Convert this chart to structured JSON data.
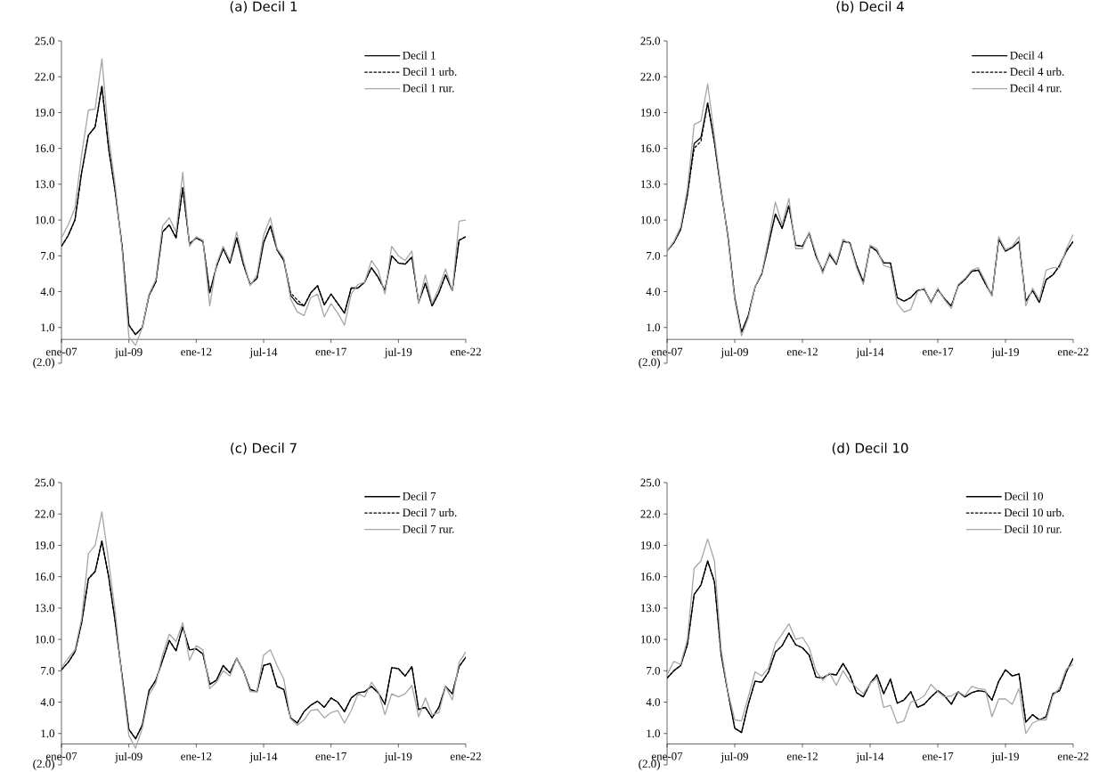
{
  "chart_data": [
    {
      "type": "line",
      "title": "(a) Decil 1",
      "legend": "top right",
      "x": [
        "2007-01",
        "2007-04",
        "2007-07",
        "2007-10",
        "2008-01",
        "2008-04",
        "2008-07",
        "2008-10",
        "2009-01",
        "2009-04",
        "2009-07",
        "2009-10",
        "2010-01",
        "2010-04",
        "2010-07",
        "2010-10",
        "2011-01",
        "2011-04",
        "2011-07",
        "2011-10",
        "2012-01",
        "2012-04",
        "2012-07",
        "2012-10",
        "2013-01",
        "2013-04",
        "2013-07",
        "2013-10",
        "2014-01",
        "2014-04",
        "2014-07",
        "2014-10",
        "2015-01",
        "2015-04",
        "2015-07",
        "2015-10",
        "2016-01",
        "2016-04",
        "2016-07",
        "2016-10",
        "2017-01",
        "2017-04",
        "2017-07",
        "2017-10",
        "2018-01",
        "2018-04",
        "2018-07",
        "2018-10",
        "2019-01",
        "2019-04",
        "2019-07",
        "2019-10",
        "2020-01",
        "2020-04",
        "2020-07",
        "2020-10",
        "2021-01",
        "2021-04",
        "2021-07",
        "2021-10",
        "2022-01"
      ],
      "xlim": [
        "2007-01",
        "2022-01"
      ],
      "xticks": [
        {
          "value": "2007-01",
          "label": "ene-07"
        },
        {
          "value": "2009-07",
          "label": "jul-09"
        },
        {
          "value": "2012-01",
          "label": "ene-12"
        },
        {
          "value": "2014-07",
          "label": "jul-14"
        },
        {
          "value": "2017-01",
          "label": "ene-17"
        },
        {
          "value": "2019-07",
          "label": "jul-19"
        },
        {
          "value": "2022-01",
          "label": "ene-22"
        }
      ],
      "ylim": [
        -2,
        25
      ],
      "yticks": [
        {
          "value": -2,
          "label": "(2.0)"
        },
        {
          "value": 1,
          "label": "1.0"
        },
        {
          "value": 4,
          "label": "4.0"
        },
        {
          "value": 7,
          "label": "7.0"
        },
        {
          "value": 10,
          "label": "10.0"
        },
        {
          "value": 13,
          "label": "13.0"
        },
        {
          "value": 16,
          "label": "16.0"
        },
        {
          "value": 19,
          "label": "19.0"
        },
        {
          "value": 22,
          "label": "22.0"
        },
        {
          "value": 25,
          "label": "25.0"
        }
      ],
      "series": [
        {
          "name": "Decil 1",
          "color": "#000000",
          "line_style": "solid",
          "values": [
            7.8,
            8.7,
            10.0,
            14.0,
            17.1,
            17.8,
            21.2,
            16.0,
            12.3,
            7.8,
            1.2,
            0.4,
            1.0,
            3.7,
            4.8,
            9.0,
            9.6,
            8.5,
            12.7,
            8.0,
            8.5,
            8.2,
            3.9,
            6.1,
            7.6,
            6.4,
            8.5,
            6.3,
            4.6,
            5.1,
            8.1,
            9.5,
            7.5,
            6.6,
            3.7,
            3.0,
            2.8,
            3.9,
            4.5,
            2.9,
            3.8,
            3.0,
            2.2,
            4.3,
            4.3,
            4.8,
            6.0,
            5.2,
            4.1,
            7.0,
            6.4,
            6.3,
            6.9,
            3.1,
            4.7,
            2.8,
            3.9,
            5.4,
            4.1,
            8.3,
            8.6
          ]
        },
        {
          "name": "Decil 1 urb.",
          "color": "#000000",
          "line_style": "dashed",
          "values": [
            7.8,
            8.7,
            10.0,
            14.0,
            17.1,
            17.8,
            21.2,
            16.0,
            12.3,
            7.8,
            1.2,
            0.4,
            1.0,
            3.7,
            4.8,
            9.0,
            9.6,
            8.5,
            12.7,
            8.0,
            8.5,
            8.2,
            3.9,
            6.1,
            7.6,
            6.4,
            8.5,
            6.3,
            4.6,
            5.1,
            8.1,
            9.5,
            7.5,
            6.6,
            3.9,
            3.3,
            2.8,
            3.9,
            4.5,
            2.9,
            3.8,
            3.0,
            2.2,
            4.3,
            4.3,
            4.8,
            6.0,
            5.2,
            4.1,
            7.0,
            6.4,
            6.3,
            6.9,
            3.1,
            4.7,
            2.8,
            3.9,
            5.4,
            4.1,
            8.3,
            8.6
          ]
        },
        {
          "name": "Decil 1 rur.",
          "color": "#a6a6a6",
          "line_style": "solid",
          "values": [
            8.5,
            9.6,
            11.0,
            15.5,
            19.2,
            19.3,
            23.5,
            17.0,
            12.8,
            7.5,
            0.2,
            -0.5,
            1.0,
            3.8,
            5.0,
            9.5,
            10.2,
            9.0,
            14.0,
            7.8,
            8.6,
            8.3,
            2.8,
            6.3,
            7.8,
            6.6,
            9.0,
            6.6,
            4.5,
            5.4,
            8.7,
            10.2,
            7.6,
            6.8,
            3.4,
            2.3,
            2.0,
            3.5,
            3.8,
            1.9,
            3.0,
            2.2,
            1.2,
            3.8,
            4.6,
            4.8,
            6.6,
            5.8,
            3.8,
            7.8,
            7.0,
            6.6,
            7.4,
            3.0,
            5.4,
            3.0,
            4.3,
            5.9,
            4.1,
            9.9,
            10.0
          ]
        }
      ]
    },
    {
      "type": "line",
      "title": "(b) Decil 4",
      "legend": "top right",
      "x": [
        "2007-01",
        "2007-04",
        "2007-07",
        "2007-10",
        "2008-01",
        "2008-04",
        "2008-07",
        "2008-10",
        "2009-01",
        "2009-04",
        "2009-07",
        "2009-10",
        "2010-01",
        "2010-04",
        "2010-07",
        "2010-10",
        "2011-01",
        "2011-04",
        "2011-07",
        "2011-10",
        "2012-01",
        "2012-04",
        "2012-07",
        "2012-10",
        "2013-01",
        "2013-04",
        "2013-07",
        "2013-10",
        "2014-01",
        "2014-04",
        "2014-07",
        "2014-10",
        "2015-01",
        "2015-04",
        "2015-07",
        "2015-10",
        "2016-01",
        "2016-04",
        "2016-07",
        "2016-10",
        "2017-01",
        "2017-04",
        "2017-07",
        "2017-10",
        "2018-01",
        "2018-04",
        "2018-07",
        "2018-10",
        "2019-01",
        "2019-04",
        "2019-07",
        "2019-10",
        "2020-01",
        "2020-04",
        "2020-07",
        "2020-10",
        "2021-01",
        "2021-04",
        "2021-07",
        "2021-10",
        "2022-01"
      ],
      "xlim": [
        "2007-01",
        "2022-01"
      ],
      "xticks": [
        {
          "value": "2007-01",
          "label": "ene-07"
        },
        {
          "value": "2009-07",
          "label": "jul-09"
        },
        {
          "value": "2012-01",
          "label": "ene-12"
        },
        {
          "value": "2014-07",
          "label": "jul-14"
        },
        {
          "value": "2017-01",
          "label": "ene-17"
        },
        {
          "value": "2019-07",
          "label": "jul-19"
        },
        {
          "value": "2022-01",
          "label": "ene-22"
        }
      ],
      "ylim": [
        -2,
        25
      ],
      "yticks": [
        {
          "value": -2,
          "label": "(2.0)"
        },
        {
          "value": 1,
          "label": "1.0"
        },
        {
          "value": 4,
          "label": "4.0"
        },
        {
          "value": 7,
          "label": "7.0"
        },
        {
          "value": 10,
          "label": "10.0"
        },
        {
          "value": 13,
          "label": "13.0"
        },
        {
          "value": 16,
          "label": "16.0"
        },
        {
          "value": 19,
          "label": "19.0"
        },
        {
          "value": 22,
          "label": "22.0"
        },
        {
          "value": 25,
          "label": "25.0"
        }
      ],
      "series": [
        {
          "name": "Decil 4",
          "color": "#000000",
          "line_style": "solid",
          "values": [
            7.4,
            8.1,
            9.2,
            12.1,
            16.4,
            16.9,
            19.8,
            16.5,
            12.4,
            8.6,
            3.5,
            0.6,
            2.0,
            4.4,
            5.5,
            8.0,
            10.5,
            9.3,
            11.2,
            7.9,
            7.8,
            8.9,
            7.0,
            5.7,
            7.1,
            6.3,
            8.2,
            8.1,
            6.2,
            4.8,
            7.8,
            7.4,
            6.4,
            6.4,
            3.5,
            3.2,
            3.5,
            4.1,
            4.2,
            3.1,
            4.2,
            3.4,
            2.8,
            4.5,
            5.0,
            5.7,
            5.8,
            4.7,
            3.7,
            8.4,
            7.4,
            7.7,
            8.2,
            3.2,
            4.1,
            3.1,
            5.0,
            5.4,
            6.2,
            7.4,
            8.2
          ]
        },
        {
          "name": "Decil 4 urb.",
          "color": "#000000",
          "line_style": "dashed",
          "values": [
            7.4,
            8.1,
            9.2,
            12.1,
            16.0,
            16.6,
            19.8,
            16.5,
            12.4,
            8.6,
            3.5,
            0.6,
            2.0,
            4.4,
            5.5,
            8.0,
            10.5,
            9.3,
            11.2,
            7.9,
            7.8,
            8.9,
            7.0,
            5.7,
            7.1,
            6.3,
            8.2,
            8.1,
            6.2,
            4.8,
            7.8,
            7.4,
            6.4,
            6.4,
            3.5,
            3.2,
            3.5,
            4.1,
            4.2,
            3.1,
            4.2,
            3.4,
            2.8,
            4.5,
            5.0,
            5.7,
            5.8,
            4.7,
            3.7,
            8.4,
            7.4,
            7.7,
            8.2,
            3.2,
            4.1,
            3.1,
            5.0,
            5.4,
            6.2,
            7.4,
            8.2
          ]
        },
        {
          "name": "Decil 4 rur.",
          "color": "#a6a6a6",
          "line_style": "solid",
          "values": [
            7.4,
            8.2,
            9.4,
            12.6,
            18.0,
            18.3,
            21.4,
            17.0,
            12.6,
            8.4,
            3.3,
            0.3,
            1.8,
            4.4,
            5.6,
            8.4,
            11.5,
            9.6,
            11.8,
            7.6,
            7.6,
            9.0,
            7.2,
            5.5,
            7.3,
            6.4,
            8.4,
            8.0,
            6.0,
            4.6,
            7.9,
            7.6,
            6.2,
            6.0,
            3.0,
            2.3,
            2.5,
            4.0,
            4.3,
            3.0,
            4.3,
            3.3,
            2.6,
            4.6,
            5.1,
            5.8,
            6.0,
            4.9,
            3.6,
            8.6,
            7.5,
            7.8,
            8.6,
            2.8,
            4.3,
            3.3,
            5.8,
            6.0,
            6.0,
            7.6,
            8.8
          ]
        }
      ]
    },
    {
      "type": "line",
      "title": "(c) Decil 7",
      "legend": "top right",
      "x": [
        "2007-01",
        "2007-04",
        "2007-07",
        "2007-10",
        "2008-01",
        "2008-04",
        "2008-07",
        "2008-10",
        "2009-01",
        "2009-04",
        "2009-07",
        "2009-10",
        "2010-01",
        "2010-04",
        "2010-07",
        "2010-10",
        "2011-01",
        "2011-04",
        "2011-07",
        "2011-10",
        "2012-01",
        "2012-04",
        "2012-07",
        "2012-10",
        "2013-01",
        "2013-04",
        "2013-07",
        "2013-10",
        "2014-01",
        "2014-04",
        "2014-07",
        "2014-10",
        "2015-01",
        "2015-04",
        "2015-07",
        "2015-10",
        "2016-01",
        "2016-04",
        "2016-07",
        "2016-10",
        "2017-01",
        "2017-04",
        "2017-07",
        "2017-10",
        "2018-01",
        "2018-04",
        "2018-07",
        "2018-10",
        "2019-01",
        "2019-04",
        "2019-07",
        "2019-10",
        "2020-01",
        "2020-04",
        "2020-07",
        "2020-10",
        "2021-01",
        "2021-04",
        "2021-07",
        "2021-10",
        "2022-01"
      ],
      "xlim": [
        "2007-01",
        "2022-01"
      ],
      "xticks": [
        {
          "value": "2007-01",
          "label": "ene-07"
        },
        {
          "value": "2009-07",
          "label": "jul-09"
        },
        {
          "value": "2012-01",
          "label": "ene-12"
        },
        {
          "value": "2014-07",
          "label": "jul-14"
        },
        {
          "value": "2017-01",
          "label": "ene-17"
        },
        {
          "value": "2019-07",
          "label": "jul-19"
        },
        {
          "value": "2022-01",
          "label": "ene-22"
        }
      ],
      "ylim": [
        -2,
        25
      ],
      "yticks": [
        {
          "value": -2,
          "label": "(2.0)"
        },
        {
          "value": 1,
          "label": "1.0"
        },
        {
          "value": 4,
          "label": "4.0"
        },
        {
          "value": 7,
          "label": "7.0"
        },
        {
          "value": 10,
          "label": "10.0"
        },
        {
          "value": 13,
          "label": "13.0"
        },
        {
          "value": 16,
          "label": "16.0"
        },
        {
          "value": 19,
          "label": "19.0"
        },
        {
          "value": 22,
          "label": "22.0"
        },
        {
          "value": 25,
          "label": "25.0"
        }
      ],
      "series": [
        {
          "name": "Decil 7",
          "color": "#000000",
          "line_style": "solid",
          "values": [
            7.1,
            7.8,
            8.8,
            11.6,
            15.8,
            16.5,
            19.4,
            16.0,
            11.6,
            6.5,
            1.4,
            0.5,
            1.8,
            5.1,
            6.1,
            8.0,
            9.9,
            8.9,
            11.2,
            9.0,
            9.1,
            8.6,
            5.7,
            6.1,
            7.5,
            6.8,
            8.2,
            7.0,
            5.2,
            5.0,
            7.5,
            7.7,
            5.5,
            5.2,
            2.5,
            2.0,
            3.1,
            3.7,
            4.1,
            3.5,
            4.4,
            4.0,
            3.1,
            4.4,
            4.9,
            5.0,
            5.5,
            4.9,
            3.8,
            7.3,
            7.2,
            6.5,
            7.4,
            3.3,
            3.5,
            2.5,
            3.5,
            5.5,
            4.8,
            7.4,
            8.3
          ]
        },
        {
          "name": "Decil 7 urb.",
          "color": "#000000",
          "line_style": "dashed",
          "values": [
            7.1,
            7.8,
            8.8,
            11.6,
            15.8,
            16.5,
            19.4,
            16.0,
            11.6,
            6.5,
            1.4,
            0.5,
            1.8,
            5.1,
            6.1,
            8.0,
            9.9,
            8.9,
            11.2,
            9.0,
            9.1,
            8.6,
            5.7,
            6.1,
            7.5,
            6.8,
            8.2,
            7.0,
            5.2,
            5.0,
            7.5,
            7.7,
            5.5,
            5.2,
            2.5,
            2.0,
            3.1,
            3.7,
            4.1,
            3.5,
            4.4,
            4.0,
            3.1,
            4.4,
            4.9,
            5.0,
            5.5,
            4.9,
            3.8,
            7.3,
            7.2,
            6.5,
            7.4,
            3.3,
            3.5,
            2.5,
            3.5,
            5.5,
            4.8,
            7.4,
            8.3
          ]
        },
        {
          "name": "Decil 7 rur.",
          "color": "#a6a6a6",
          "line_style": "solid",
          "values": [
            7.3,
            8.2,
            9.0,
            12.0,
            18.2,
            19.0,
            22.2,
            17.5,
            12.5,
            6.2,
            0.8,
            -0.4,
            1.5,
            4.7,
            5.8,
            8.5,
            10.5,
            9.8,
            11.6,
            8.0,
            9.4,
            9.0,
            5.3,
            5.9,
            7.0,
            6.5,
            8.2,
            7.0,
            5.0,
            5.0,
            8.5,
            9.0,
            7.5,
            6.2,
            2.4,
            1.8,
            2.3,
            3.2,
            3.3,
            2.5,
            3.0,
            3.2,
            2.0,
            3.2,
            4.8,
            4.5,
            5.9,
            5.0,
            2.8,
            4.8,
            4.5,
            4.8,
            5.6,
            2.6,
            4.4,
            2.8,
            3.0,
            5.5,
            4.2,
            7.8,
            8.8
          ]
        }
      ]
    },
    {
      "type": "line",
      "title": "(d) Decil 10",
      "legend": "top right",
      "x": [
        "2007-01",
        "2007-04",
        "2007-07",
        "2007-10",
        "2008-01",
        "2008-04",
        "2008-07",
        "2008-10",
        "2009-01",
        "2009-04",
        "2009-07",
        "2009-10",
        "2010-01",
        "2010-04",
        "2010-07",
        "2010-10",
        "2011-01",
        "2011-04",
        "2011-07",
        "2011-10",
        "2012-01",
        "2012-04",
        "2012-07",
        "2012-10",
        "2013-01",
        "2013-04",
        "2013-07",
        "2013-10",
        "2014-01",
        "2014-04",
        "2014-07",
        "2014-10",
        "2015-01",
        "2015-04",
        "2015-07",
        "2015-10",
        "2016-01",
        "2016-04",
        "2016-07",
        "2016-10",
        "2017-01",
        "2017-04",
        "2017-07",
        "2017-10",
        "2018-01",
        "2018-04",
        "2018-07",
        "2018-10",
        "2019-01",
        "2019-04",
        "2019-07",
        "2019-10",
        "2020-01",
        "2020-04",
        "2020-07",
        "2020-10",
        "2021-01",
        "2021-04",
        "2021-07",
        "2021-10",
        "2022-01"
      ],
      "xlim": [
        "2007-01",
        "2022-01"
      ],
      "xticks": [
        {
          "value": "2007-01",
          "label": "ene-07"
        },
        {
          "value": "2009-07",
          "label": "jul-09"
        },
        {
          "value": "2012-01",
          "label": "ene-12"
        },
        {
          "value": "2014-07",
          "label": "jul-14"
        },
        {
          "value": "2017-01",
          "label": "ene-17"
        },
        {
          "value": "2019-07",
          "label": "jul-19"
        },
        {
          "value": "2022-01",
          "label": "ene-22"
        }
      ],
      "ylim": [
        -2,
        25
      ],
      "yticks": [
        {
          "value": -2,
          "label": "(2.0)"
        },
        {
          "value": 1,
          "label": "1.0"
        },
        {
          "value": 4,
          "label": "4.0"
        },
        {
          "value": 7,
          "label": "7.0"
        },
        {
          "value": 10,
          "label": "10.0"
        },
        {
          "value": 13,
          "label": "13.0"
        },
        {
          "value": 16,
          "label": "16.0"
        },
        {
          "value": 19,
          "label": "19.0"
        },
        {
          "value": 22,
          "label": "22.0"
        },
        {
          "value": 25,
          "label": "25.0"
        }
      ],
      "series": [
        {
          "name": "Decil 10",
          "color": "#000000",
          "line_style": "solid",
          "values": [
            6.3,
            7.0,
            7.5,
            9.5,
            14.3,
            15.2,
            17.5,
            15.5,
            8.5,
            4.9,
            1.5,
            1.1,
            3.8,
            6.0,
            5.9,
            6.9,
            8.8,
            9.4,
            10.6,
            9.5,
            9.2,
            8.5,
            6.4,
            6.3,
            6.7,
            6.6,
            7.7,
            6.6,
            4.9,
            4.5,
            5.8,
            6.6,
            4.8,
            6.2,
            3.9,
            4.2,
            5.0,
            3.5,
            3.8,
            4.5,
            5.1,
            4.6,
            3.8,
            5.0,
            4.5,
            4.9,
            5.1,
            5.0,
            4.2,
            6.0,
            7.1,
            6.5,
            6.7,
            2.1,
            2.8,
            2.3,
            2.6,
            4.8,
            5.1,
            6.9,
            8.2
          ]
        },
        {
          "name": "Decil 10 urb.",
          "color": "#000000",
          "line_style": "dashed",
          "values": [
            6.3,
            7.0,
            7.5,
            9.5,
            14.3,
            15.2,
            17.5,
            15.5,
            8.5,
            4.9,
            1.5,
            1.1,
            3.8,
            6.0,
            5.9,
            6.9,
            8.8,
            9.4,
            10.6,
            9.5,
            9.2,
            8.5,
            6.4,
            6.3,
            6.7,
            6.6,
            7.7,
            6.6,
            4.9,
            4.5,
            5.8,
            6.6,
            4.8,
            6.2,
            3.9,
            4.2,
            5.0,
            3.5,
            3.8,
            4.5,
            5.1,
            4.6,
            3.8,
            5.0,
            4.5,
            4.9,
            5.1,
            5.0,
            4.2,
            6.0,
            7.1,
            6.5,
            6.7,
            2.1,
            2.8,
            2.3,
            2.6,
            4.8,
            5.1,
            6.9,
            8.2
          ]
        },
        {
          "name": "Decil 10 rur.",
          "color": "#a6a6a6",
          "line_style": "solid",
          "values": [
            6.6,
            7.9,
            7.6,
            10.0,
            16.8,
            17.5,
            19.6,
            17.5,
            9.0,
            5.0,
            2.3,
            2.2,
            4.5,
            6.9,
            6.5,
            7.3,
            9.6,
            10.5,
            11.5,
            10.0,
            10.2,
            9.2,
            7.0,
            6.1,
            6.8,
            5.6,
            7.0,
            6.0,
            5.4,
            4.8,
            5.8,
            6.3,
            3.5,
            3.7,
            2.0,
            2.2,
            4.0,
            4.2,
            4.6,
            5.7,
            5.0,
            4.5,
            4.6,
            5.0,
            4.6,
            5.5,
            5.3,
            5.2,
            2.6,
            4.3,
            4.3,
            3.8,
            5.3,
            1.0,
            2.0,
            2.3,
            2.3,
            4.6,
            5.4,
            7.2,
            7.6
          ]
        }
      ]
    }
  ]
}
